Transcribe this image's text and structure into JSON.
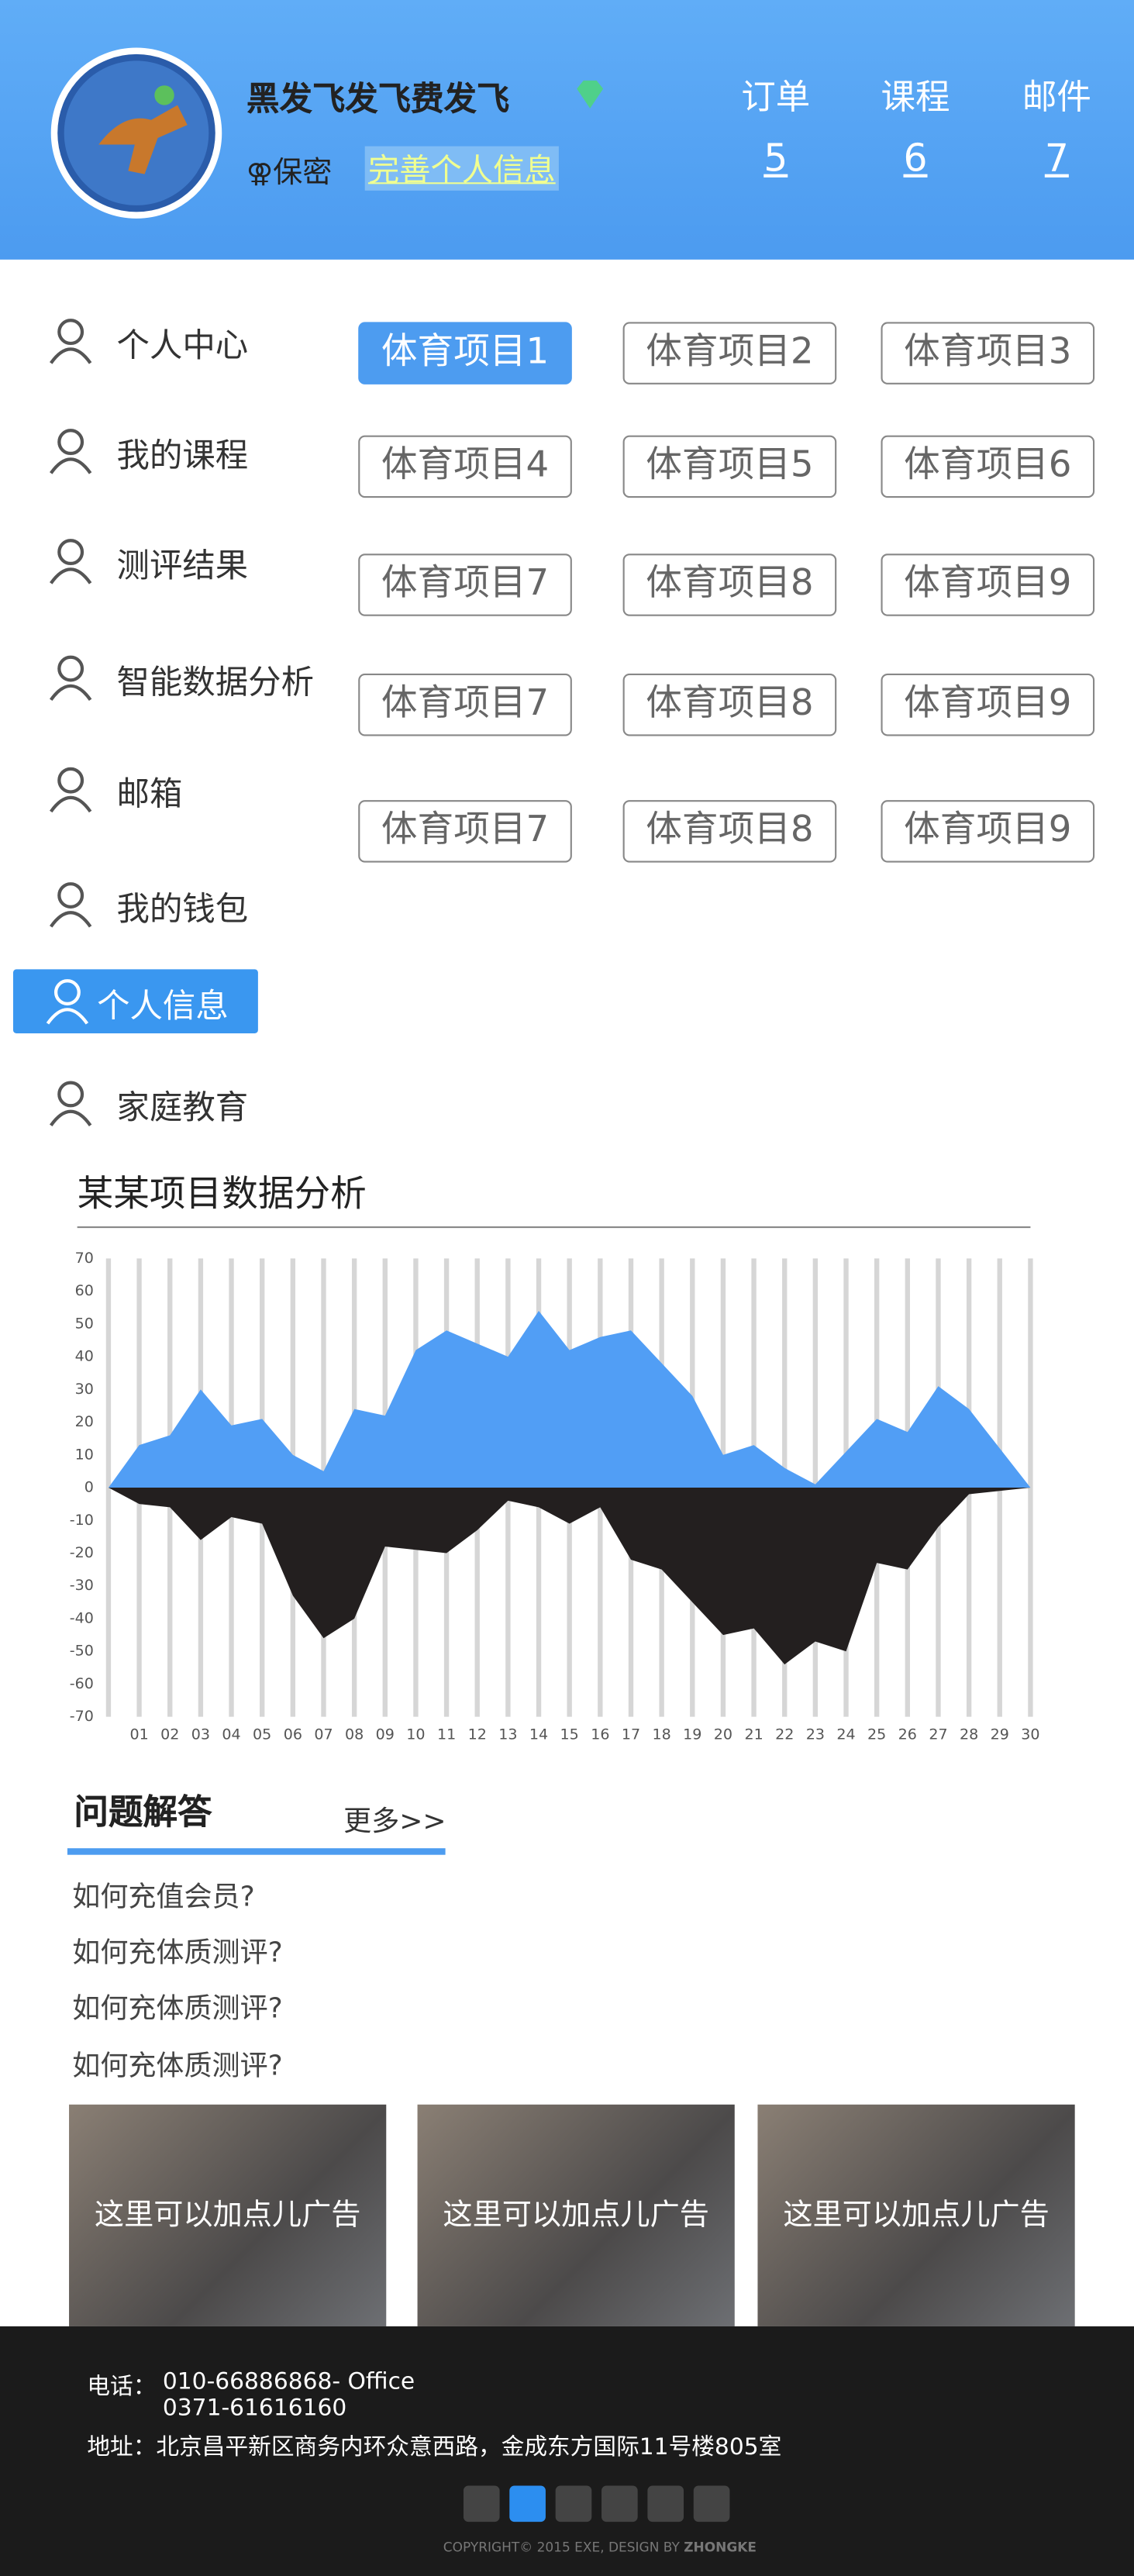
{
  "header": {
    "name": "黑发飞发飞费发飞",
    "privacy": "保密",
    "complete_link": "完善个人信息",
    "stats": [
      {
        "label": "订单",
        "value": 5
      },
      {
        "label": "课程",
        "value": 6
      },
      {
        "label": "邮件",
        "value": 7
      }
    ]
  },
  "menu": {
    "items": [
      "个人中心",
      "我的课程",
      "测评结果",
      "智能数据分析",
      "邮箱",
      "我的钱包",
      "个人信息",
      "家庭教育"
    ],
    "active": 6
  },
  "sports": {
    "items": [
      "体育项目1",
      "体育项目2",
      "体育项目3",
      "体育项目4",
      "体育项目5",
      "体育项目6",
      "体育项目7",
      "体育项目8",
      "体育项目9",
      "体育项目7",
      "体育项目8",
      "体育项目9",
      "体育项目7",
      "体育项目8",
      "体育项目9"
    ],
    "active": 0
  },
  "chart_data": {
    "type": "area",
    "title": "某某项目数据分析",
    "categories": [
      null,
      "01",
      "02",
      "03",
      "04",
      "05",
      "06",
      "07",
      "08",
      "09",
      "10",
      "11",
      "12",
      "13",
      "14",
      "15",
      "16",
      "17",
      "18",
      "19",
      "20",
      "21",
      "22",
      "23",
      "24",
      "25",
      "26",
      "27",
      "28",
      "29",
      "30"
    ],
    "series": [
      {
        "color": "#519ef5",
        "values": [
          0,
          13,
          16,
          30,
          19,
          21,
          10,
          5,
          24,
          22,
          42,
          48,
          44,
          40,
          54,
          42,
          46,
          48,
          38,
          28,
          10,
          13,
          6,
          1,
          11,
          21,
          17,
          31,
          24,
          12,
          0
        ]
      },
      {
        "color": "#231f1f",
        "values": [
          0,
          -5,
          -6,
          -16,
          -9,
          -11,
          -33,
          -46,
          -40,
          -18,
          -19,
          -20,
          -13,
          -4,
          -6,
          -11,
          -6,
          -22,
          -25,
          -35,
          -45,
          -43,
          -54,
          -47,
          -50,
          -23,
          -25,
          -12,
          -2,
          -1,
          0
        ]
      }
    ],
    "ylim": [
      -70,
      70
    ],
    "yticks": [
      70,
      60,
      50,
      40,
      30,
      20,
      10,
      0,
      -10,
      -20,
      -30,
      -40,
      -50,
      -60,
      -70
    ],
    "grid": true
  },
  "qa": {
    "title": "问题解答",
    "more": "更多>>",
    "items": [
      "如何充值会员?",
      "如何充体质测评?",
      "如何充体质测评?",
      "如何充体质测评?"
    ]
  },
  "ads": [
    "这里可以加点儿广告",
    "这里可以加点儿广告",
    "这里可以加点儿广告"
  ],
  "footer": {
    "phone_label": "电话：",
    "phones": [
      "010-66886868- Office",
      "0371-61616160"
    ],
    "address": "地址：北京昌平新区商务内环众意西路，金成东方国际11号楼805室",
    "copyright": "COPYRIGHT© 2015 EXE, DESIGN BY ",
    "designer": "ZHONGKE"
  }
}
